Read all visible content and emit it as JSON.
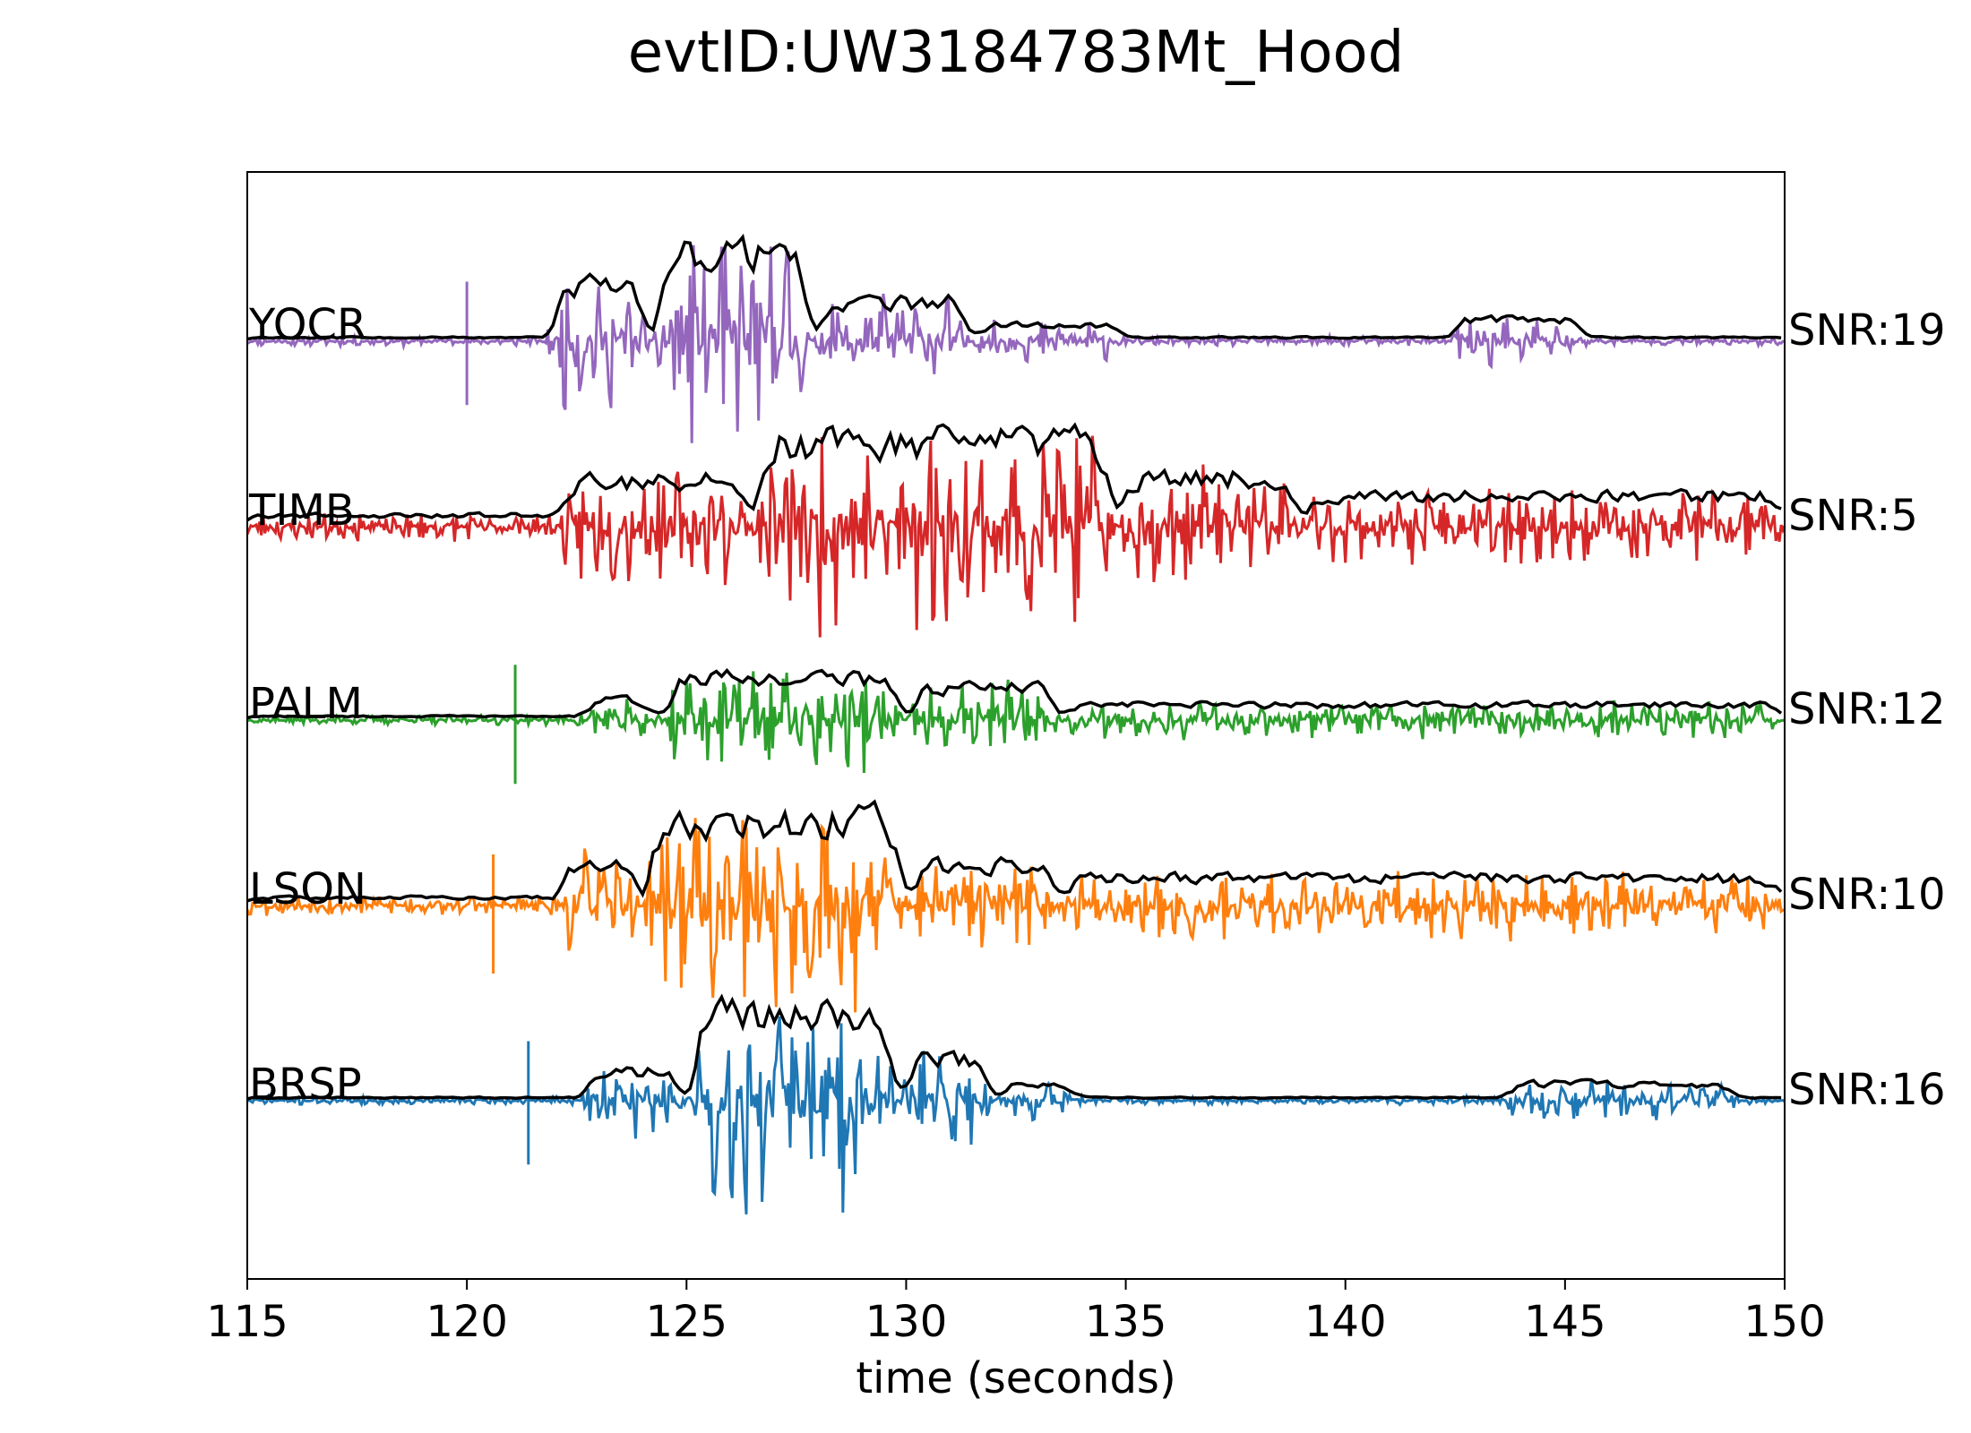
{
  "chart_data": {
    "type": "line",
    "title": "evtID:UW3184783Mt_Hood",
    "xlabel": "time (seconds)",
    "ylabel": "",
    "xlim": [
      115,
      150
    ],
    "xticks": [
      115,
      120,
      125,
      130,
      135,
      140,
      145,
      150
    ],
    "tick_labels": [
      "115",
      "120",
      "125",
      "130",
      "135",
      "140",
      "145",
      "150"
    ],
    "grid": false,
    "envelope_color": "#000000",
    "series": [
      {
        "name": "YOCR",
        "snr_label": "SNR:19",
        "color": "#9467bd",
        "pick_time": 120.0,
        "pick_up": 0.7,
        "pick_down": 0.75,
        "noise": 0.06,
        "seed": 11,
        "bursts": [
          {
            "t0": 121.8,
            "t1": 124.2,
            "amp": 0.8
          },
          {
            "t0": 124.2,
            "t1": 127.9,
            "amp": 1.35
          },
          {
            "t0": 127.9,
            "t1": 131.5,
            "amp": 0.55
          },
          {
            "t0": 131.5,
            "t1": 135.0,
            "amp": 0.2
          },
          {
            "t0": 142.3,
            "t1": 145.5,
            "amp": 0.3
          }
        ]
      },
      {
        "name": "TIMB",
        "snr_label": "SNR:5",
        "color": "#d62728",
        "pick_time": null,
        "noise": 0.18,
        "seed": 23,
        "bursts": [
          {
            "t0": 122.0,
            "t1": 126.5,
            "amp": 0.55
          },
          {
            "t0": 126.5,
            "t1": 134.8,
            "amp": 1.15
          },
          {
            "t0": 134.8,
            "t1": 139.0,
            "amp": 0.6
          },
          {
            "t0": 139.0,
            "t1": 150.0,
            "amp": 0.3
          }
        ]
      },
      {
        "name": "PALM",
        "snr_label": "SNR:12",
        "color": "#2ca02c",
        "pick_time": 121.1,
        "pick_up": 0.65,
        "pick_down": 0.75,
        "noise": 0.06,
        "seed": 37,
        "bursts": [
          {
            "t0": 122.5,
            "t1": 124.4,
            "amp": 0.25
          },
          {
            "t0": 124.4,
            "t1": 130.0,
            "amp": 0.6
          },
          {
            "t0": 128.2,
            "t1": 128.9,
            "amp": 0.85
          },
          {
            "t0": 130.0,
            "t1": 133.5,
            "amp": 0.45
          },
          {
            "t0": 133.5,
            "t1": 150.0,
            "amp": 0.18
          }
        ]
      },
      {
        "name": "LSON",
        "snr_label": "SNR:10",
        "color": "#ff7f0e",
        "pick_time": 120.6,
        "pick_up": 0.6,
        "pick_down": 0.8,
        "noise": 0.13,
        "seed": 53,
        "bursts": [
          {
            "t0": 122.0,
            "t1": 124.0,
            "amp": 0.55
          },
          {
            "t0": 124.0,
            "t1": 130.0,
            "amp": 1.2
          },
          {
            "t0": 130.0,
            "t1": 133.5,
            "amp": 0.5
          },
          {
            "t0": 133.5,
            "t1": 150.0,
            "amp": 0.3
          }
        ]
      },
      {
        "name": "BRSP",
        "snr_label": "SNR:16",
        "color": "#1f77b4",
        "pick_time": 121.4,
        "pick_up": 0.7,
        "pick_down": 0.75,
        "noise": 0.05,
        "seed": 71,
        "bursts": [
          {
            "t0": 122.5,
            "t1": 125.0,
            "amp": 0.4
          },
          {
            "t0": 125.0,
            "t1": 129.8,
            "amp": 1.3
          },
          {
            "t0": 129.8,
            "t1": 132.0,
            "amp": 0.6
          },
          {
            "t0": 132.0,
            "t1": 134.0,
            "amp": 0.2
          },
          {
            "t0": 143.5,
            "t1": 149.0,
            "amp": 0.22
          }
        ]
      }
    ]
  }
}
